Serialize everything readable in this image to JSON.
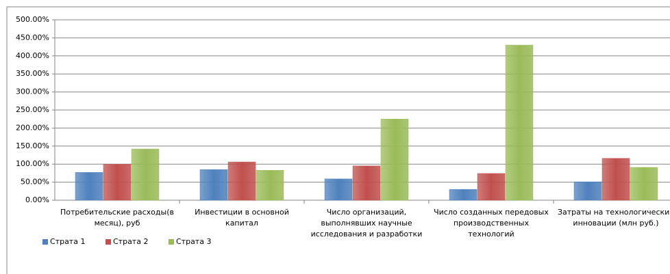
{
  "chart_data": {
    "type": "bar",
    "categories": [
      "Потребительские расходы(в месяц), руб",
      "Инвестиции в основной капитал",
      "Число организаций, выполнявших научные исследования и разработки",
      "Число созданных передовых производственных технологий",
      "Затраты на технологические инновации (млн руб.)"
    ],
    "series": [
      {
        "name": "Страта 1",
        "color": "#4f81bd",
        "values": [
          77,
          85,
          59,
          30,
          51
        ]
      },
      {
        "name": "Страта 2",
        "color": "#c0504d",
        "values": [
          100,
          106,
          95,
          74,
          116
        ]
      },
      {
        "name": "Страта 3",
        "color": "#9bbb59",
        "values": [
          142,
          83,
          225,
          430,
          91
        ]
      }
    ],
    "ylim": [
      0,
      500
    ],
    "yticks": [
      {
        "value": 0,
        "label": "0.00%"
      },
      {
        "value": 50,
        "label": "50.00%"
      },
      {
        "value": 100,
        "label": "100.00%"
      },
      {
        "value": 150,
        "label": "150.00%"
      },
      {
        "value": 200,
        "label": "200.00%"
      },
      {
        "value": 250,
        "label": "250.00%"
      },
      {
        "value": 300,
        "label": "300.00%"
      },
      {
        "value": 350,
        "label": "350.00%"
      },
      {
        "value": 400,
        "label": "400.00%"
      },
      {
        "value": 450,
        "label": "450.00%"
      },
      {
        "value": 500,
        "label": "500.00%"
      }
    ],
    "grid": true,
    "legend": "bottom"
  }
}
